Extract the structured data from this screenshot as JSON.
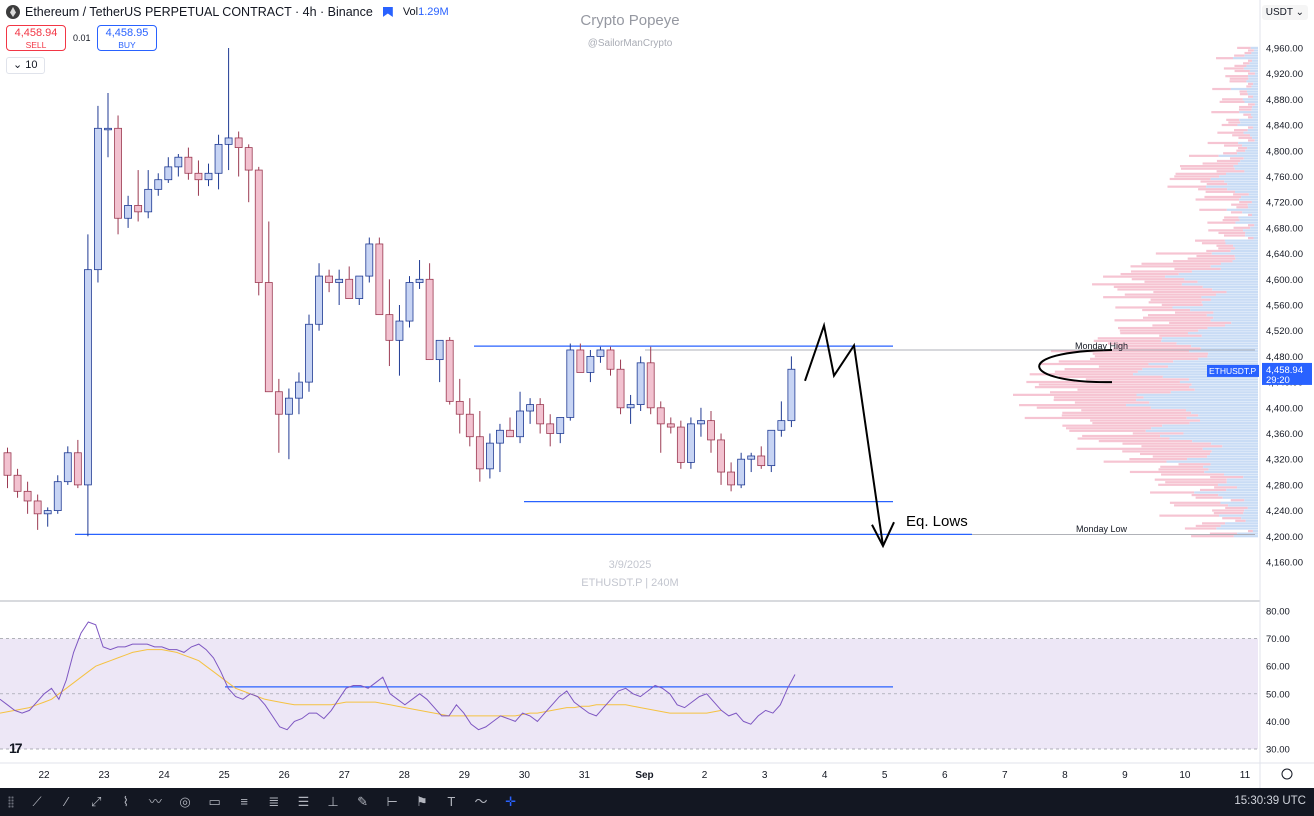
{
  "header": {
    "symbol_title": "Ethereum / TetherUS PERPETUAL CONTRACT · 4h · Binance",
    "volume_label": "Vol",
    "volume_value": "1.29M",
    "sell_price": "4,458.94",
    "sell_label": "SELL",
    "buy_price": "4,458.95",
    "buy_label": "BUY",
    "spread": "0.01",
    "interval_value": "10",
    "currency": "USDT"
  },
  "watermark": {
    "title": "Crypto Popeye",
    "handle": "@SailorManCrypto",
    "date": "3/9/2025",
    "symbol_tf": "ETHUSDT.P | 240M"
  },
  "price_tag": {
    "symbol": "ETHUSDT.P",
    "price": "4,458.94",
    "countdown": "29:20"
  },
  "annotations": {
    "monday_high": "Monday High",
    "monday_low": "Monday Low",
    "eq_lows": "Eq. Lows"
  },
  "colors": {
    "up_fill": "#c7d4f4",
    "down_fill": "#f2c2d0",
    "candle_outline": "#1f3a93",
    "level_line": "#2962ff",
    "rsi_line": "#7e57c2",
    "rsi_ma": "#f5c242",
    "rsi_band": "#ede7f6",
    "volume_profile_up": "#c9dcf5",
    "volume_profile_down": "#f6c4d2"
  },
  "toolbar": {
    "time": "15:30:39 UTC",
    "tools": [
      "cursor-icon",
      "line-icon",
      "trend-icon",
      "ray-icon",
      "path-icon",
      "zigzag-icon",
      "circle-icon",
      "rectangle-icon",
      "fib-icon",
      "fib-channel-icon",
      "fib-fan-icon",
      "measure-icon",
      "pencil-icon",
      "range-icon",
      "flag-icon",
      "text-icon",
      "brush-icon",
      "crosshair-icon"
    ]
  },
  "chart_data": [
    {
      "type": "candlestick",
      "title": "Ethereum / TetherUS PERPETUAL CONTRACT · 4h · Binance",
      "y_axis_ticks": [
        "4,960.00",
        "4,920.00",
        "4,880.00",
        "4,840.00",
        "4,800.00",
        "4,760.00",
        "4,720.00",
        "4,680.00",
        "4,640.00",
        "4,600.00",
        "4,560.00",
        "4,520.00",
        "4,480.00",
        "4,440.00",
        "4,400.00",
        "4,360.00",
        "4,320.00",
        "4,280.00",
        "4,240.00",
        "4,200.00",
        "4,160.00"
      ],
      "x_axis_ticks": [
        "22",
        "23",
        "24",
        "25",
        "26",
        "27",
        "28",
        "29",
        "30",
        "31",
        "Sep",
        "2",
        "3",
        "4",
        "5",
        "6",
        "7",
        "8",
        "9",
        "10",
        "11"
      ],
      "ylim": [
        4130,
        4985
      ],
      "grid": false,
      "candles_ohlc": [
        [
          4330,
          4338,
          4275,
          4295
        ],
        [
          4295,
          4305,
          4260,
          4270
        ],
        [
          4270,
          4285,
          4235,
          4255
        ],
        [
          4255,
          4265,
          4210,
          4235
        ],
        [
          4235,
          4245,
          4215,
          4240
        ],
        [
          4240,
          4295,
          4235,
          4285
        ],
        [
          4285,
          4340,
          4280,
          4330
        ],
        [
          4330,
          4350,
          4275,
          4280
        ],
        [
          4280,
          4670,
          4200,
          4615
        ],
        [
          4615,
          4870,
          4595,
          4835
        ],
        [
          4835,
          4890,
          4790,
          4835
        ],
        [
          4835,
          4855,
          4670,
          4695
        ],
        [
          4695,
          4730,
          4680,
          4715
        ],
        [
          4715,
          4770,
          4690,
          4705
        ],
        [
          4705,
          4770,
          4695,
          4740
        ],
        [
          4740,
          4765,
          4730,
          4755
        ],
        [
          4755,
          4790,
          4750,
          4775
        ],
        [
          4775,
          4795,
          4760,
          4790
        ],
        [
          4790,
          4805,
          4755,
          4765
        ],
        [
          4765,
          4785,
          4730,
          4755
        ],
        [
          4755,
          4780,
          4745,
          4765
        ],
        [
          4765,
          4825,
          4740,
          4810
        ],
        [
          4810,
          4960,
          4770,
          4820
        ],
        [
          4820,
          4830,
          4760,
          4805
        ],
        [
          4805,
          4810,
          4720,
          4770
        ],
        [
          4770,
          4775,
          4575,
          4595
        ],
        [
          4595,
          4690,
          4520,
          4425
        ],
        [
          4425,
          4445,
          4330,
          4390
        ],
        [
          4390,
          4430,
          4320,
          4415
        ],
        [
          4415,
          4455,
          4390,
          4440
        ],
        [
          4440,
          4545,
          4425,
          4530
        ],
        [
          4530,
          4625,
          4520,
          4605
        ],
        [
          4605,
          4615,
          4580,
          4595
        ],
        [
          4595,
          4615,
          4560,
          4600
        ],
        [
          4600,
          4620,
          4580,
          4570
        ],
        [
          4570,
          4595,
          4560,
          4605
        ],
        [
          4605,
          4665,
          4595,
          4655
        ],
        [
          4655,
          4665,
          4575,
          4545
        ],
        [
          4545,
          4600,
          4465,
          4505
        ],
        [
          4505,
          4560,
          4450,
          4535
        ],
        [
          4535,
          4605,
          4525,
          4595
        ],
        [
          4595,
          4630,
          4585,
          4600
        ],
        [
          4600,
          4625,
          4490,
          4475
        ],
        [
          4475,
          4495,
          4440,
          4505
        ],
        [
          4505,
          4510,
          4405,
          4410
        ],
        [
          4410,
          4445,
          4360,
          4390
        ],
        [
          4390,
          4415,
          4340,
          4355
        ],
        [
          4355,
          4395,
          4285,
          4305
        ],
        [
          4305,
          4360,
          4290,
          4345
        ],
        [
          4345,
          4375,
          4300,
          4365
        ],
        [
          4365,
          4385,
          4355,
          4355
        ],
        [
          4355,
          4425,
          4345,
          4395
        ],
        [
          4395,
          4415,
          4375,
          4405
        ],
        [
          4405,
          4415,
          4360,
          4375
        ],
        [
          4375,
          4390,
          4340,
          4360
        ],
        [
          4360,
          4385,
          4345,
          4385
        ],
        [
          4385,
          4500,
          4380,
          4490
        ],
        [
          4490,
          4500,
          4455,
          4455
        ],
        [
          4455,
          4490,
          4440,
          4480
        ],
        [
          4480,
          4495,
          4470,
          4490
        ],
        [
          4490,
          4495,
          4450,
          4460
        ],
        [
          4460,
          4475,
          4390,
          4400
        ],
        [
          4400,
          4420,
          4375,
          4405
        ],
        [
          4405,
          4480,
          4395,
          4470
        ],
        [
          4470,
          4495,
          4390,
          4400
        ],
        [
          4400,
          4410,
          4330,
          4375
        ],
        [
          4375,
          4385,
          4360,
          4370
        ],
        [
          4370,
          4380,
          4305,
          4315
        ],
        [
          4315,
          4385,
          4305,
          4375
        ],
        [
          4375,
          4400,
          4355,
          4380
        ],
        [
          4380,
          4395,
          4330,
          4350
        ],
        [
          4350,
          4360,
          4280,
          4300
        ],
        [
          4300,
          4315,
          4270,
          4280
        ],
        [
          4280,
          4330,
          4275,
          4320
        ],
        [
          4320,
          4330,
          4300,
          4325
        ],
        [
          4325,
          4340,
          4305,
          4310
        ],
        [
          4310,
          4350,
          4300,
          4365
        ],
        [
          4365,
          4410,
          4355,
          4380
        ],
        [
          4380,
          4480,
          4370,
          4460
        ]
      ],
      "levels": [
        {
          "label": "Monday High",
          "value": 4490
        },
        {
          "label": "Monday Low",
          "value": 4203
        },
        {
          "label": "Eq. Lows",
          "value": 4254
        },
        {
          "label": "range top",
          "value": 4496
        }
      ],
      "projection_path": [
        4442,
        4528,
        4450,
        4497,
        4185
      ],
      "current_price": 4458.94
    },
    {
      "type": "line",
      "title": "RSI",
      "y_axis_ticks": [
        "80.00",
        "70.00",
        "60.00",
        "50.00",
        "40.00",
        "30.00"
      ],
      "ylim": [
        28,
        82
      ],
      "band": [
        30,
        70
      ],
      "midline": 50,
      "level_line": 52.5,
      "series": [
        {
          "values": [
            48,
            46,
            44,
            43,
            44,
            47,
            50,
            52,
            48,
            55,
            65,
            72,
            76,
            75,
            67,
            66,
            67,
            67,
            68,
            68,
            68,
            67,
            67,
            66,
            66,
            65,
            67,
            68,
            66,
            63,
            58,
            52,
            49,
            48,
            50,
            49,
            46,
            42,
            38,
            37,
            40,
            41,
            43,
            43,
            41,
            44,
            48,
            52,
            53,
            53,
            52,
            54,
            56,
            50,
            48,
            46,
            48,
            50,
            48,
            45,
            42,
            42,
            46,
            43,
            39,
            37,
            38,
            40,
            42,
            41,
            40,
            43,
            42,
            40,
            43,
            46,
            49,
            51,
            47,
            45,
            43,
            42,
            45,
            48,
            51,
            52,
            50,
            49,
            51,
            53,
            52,
            50,
            46,
            45,
            47,
            49,
            50,
            47,
            44,
            42,
            43,
            40,
            39,
            42,
            44,
            43,
            46,
            52,
            57
          ]
        },
        {
          "values": [
            43,
            43.5,
            44,
            44.5,
            45,
            46,
            47,
            48,
            50,
            52,
            54,
            56,
            58,
            60,
            61,
            62,
            63,
            64,
            65,
            65.5,
            66,
            66,
            66,
            65.5,
            65,
            64,
            63,
            62,
            60,
            58,
            56,
            54,
            52,
            51,
            50,
            49,
            48,
            47.5,
            47,
            46.5,
            46,
            46,
            46,
            46,
            46,
            46,
            46.5,
            47,
            47,
            47,
            47,
            47,
            46.5,
            46,
            45.5,
            45,
            44.5,
            44,
            43.5,
            43,
            42.5,
            42,
            42,
            42,
            42,
            42,
            42,
            42,
            42,
            42,
            42,
            42.5,
            43,
            43,
            43.5,
            44,
            44.5,
            45,
            45,
            45.5,
            45.5,
            46,
            46,
            46,
            46,
            46,
            45.5,
            45,
            44.5,
            44,
            43.5,
            43,
            43,
            43,
            43,
            43,
            43,
            43.5,
            44
          ]
        }
      ]
    }
  ]
}
